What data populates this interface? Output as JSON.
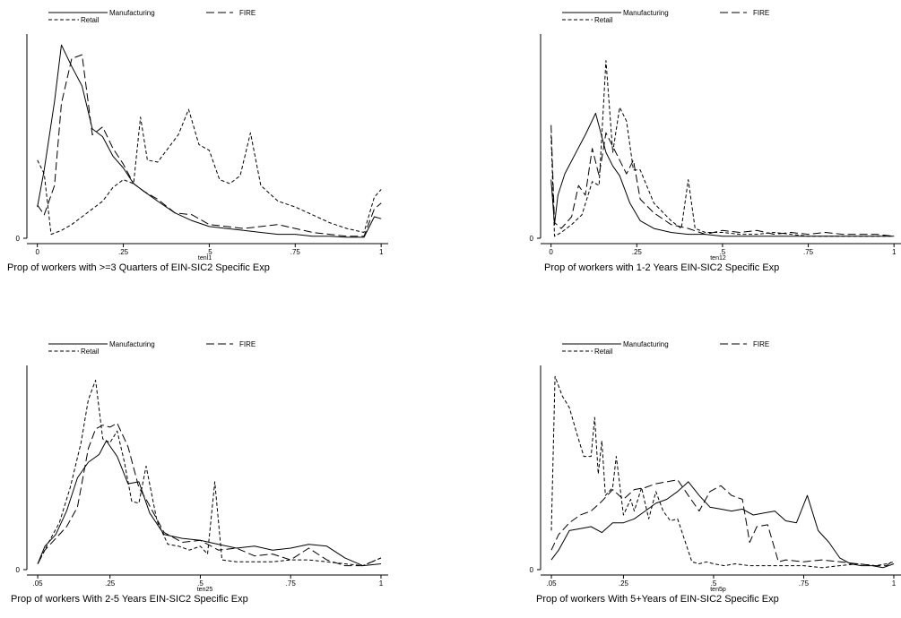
{
  "chart_data": [
    {
      "type": "line",
      "title": "Prop of workers with >=3 Quarters of EIN-SIC2 Specific Exp",
      "xlabel": "tenl1",
      "ylabel": "",
      "xlim": [
        -0.02,
        1.01
      ],
      "ylim": [
        0,
        1
      ],
      "xticks": [
        {
          "v": 0,
          "label": "0"
        },
        {
          "v": 0.25,
          "label": ".25"
        },
        {
          "v": 0.5,
          "label": ".5"
        },
        {
          "v": 0.75,
          "label": ".75"
        },
        {
          "v": 1,
          "label": "1"
        }
      ],
      "yticks": [
        {
          "v": 0,
          "label": "0"
        }
      ],
      "grid": false,
      "legend": "top",
      "series": [
        {
          "name": "Manufacturing",
          "dash": "solid",
          "x": [
            0,
            0.02,
            0.05,
            0.07,
            0.1,
            0.13,
            0.16,
            0.19,
            0.22,
            0.25,
            0.28,
            0.31,
            0.35,
            0.4,
            0.45,
            0.5,
            0.55,
            0.6,
            0.65,
            0.7,
            0.75,
            0.8,
            0.85,
            0.9,
            0.95,
            0.98,
            1
          ],
          "y": [
            0.16,
            0.35,
            0.7,
            0.99,
            0.88,
            0.78,
            0.56,
            0.52,
            0.42,
            0.36,
            0.28,
            0.24,
            0.19,
            0.13,
            0.09,
            0.06,
            0.05,
            0.04,
            0.03,
            0.02,
            0.02,
            0.01,
            0.01,
            0.005,
            0.005,
            0.11,
            0.1
          ]
        },
        {
          "name": "FIRE",
          "dash": "longdash",
          "x": [
            0,
            0.02,
            0.05,
            0.07,
            0.1,
            0.13,
            0.16,
            0.19,
            0.22,
            0.25,
            0.28,
            0.31,
            0.35,
            0.4,
            0.45,
            0.5,
            0.55,
            0.6,
            0.65,
            0.7,
            0.75,
            0.8,
            0.85,
            0.9,
            0.95,
            0.98,
            1
          ],
          "y": [
            0.17,
            0.12,
            0.27,
            0.69,
            0.92,
            0.94,
            0.53,
            0.57,
            0.46,
            0.38,
            0.28,
            0.24,
            0.2,
            0.13,
            0.12,
            0.07,
            0.06,
            0.05,
            0.06,
            0.07,
            0.05,
            0.03,
            0.02,
            0.01,
            0.01,
            0.15,
            0.18
          ]
        },
        {
          "name": "Retail",
          "dash": "shortdash",
          "x": [
            0,
            0.02,
            0.04,
            0.07,
            0.1,
            0.13,
            0.16,
            0.19,
            0.22,
            0.25,
            0.28,
            0.3,
            0.32,
            0.35,
            0.38,
            0.41,
            0.44,
            0.47,
            0.5,
            0.53,
            0.56,
            0.59,
            0.62,
            0.65,
            0.7,
            0.75,
            0.8,
            0.85,
            0.9,
            0.95,
            0.98,
            1
          ],
          "y": [
            0.4,
            0.33,
            0.02,
            0.04,
            0.07,
            0.11,
            0.15,
            0.19,
            0.26,
            0.3,
            0.28,
            0.62,
            0.4,
            0.39,
            0.46,
            0.53,
            0.66,
            0.48,
            0.45,
            0.3,
            0.28,
            0.32,
            0.54,
            0.27,
            0.19,
            0.16,
            0.12,
            0.08,
            0.05,
            0.03,
            0.21,
            0.25
          ]
        }
      ]
    },
    {
      "type": "line",
      "title": "Prop of workers with 1-2 Years EIN-SIC2 Specific Exp",
      "xlabel": "ten12",
      "ylabel": "",
      "xlim": [
        -0.02,
        1.01
      ],
      "ylim": [
        0,
        1
      ],
      "xticks": [
        {
          "v": 0,
          "label": "0"
        },
        {
          "v": 0.25,
          "label": ".25"
        },
        {
          "v": 0.5,
          "label": ".5"
        },
        {
          "v": 0.75,
          "label": ".75"
        },
        {
          "v": 1,
          "label": "1"
        }
      ],
      "yticks": [
        {
          "v": 0,
          "label": "0"
        }
      ],
      "grid": false,
      "legend": "top",
      "series": [
        {
          "name": "Manufacturing",
          "dash": "solid",
          "x": [
            0,
            0.01,
            0.02,
            0.04,
            0.07,
            0.1,
            0.13,
            0.16,
            0.18,
            0.2,
            0.23,
            0.26,
            0.3,
            0.35,
            0.4,
            0.45,
            0.5,
            0.55,
            0.6,
            0.65,
            0.7,
            0.75,
            0.8,
            0.85,
            0.9,
            0.95,
            1
          ],
          "y": [
            0.3,
            0.07,
            0.22,
            0.33,
            0.43,
            0.53,
            0.64,
            0.44,
            0.37,
            0.32,
            0.18,
            0.09,
            0.05,
            0.03,
            0.02,
            0.02,
            0.01,
            0.01,
            0.01,
            0.01,
            0.01,
            0.01,
            0.01,
            0.01,
            0.01,
            0.01,
            0.01
          ]
        },
        {
          "name": "FIRE",
          "dash": "longdash",
          "x": [
            0,
            0.01,
            0.03,
            0.06,
            0.08,
            0.1,
            0.12,
            0.14,
            0.16,
            0.18,
            0.2,
            0.22,
            0.24,
            0.26,
            0.3,
            0.35,
            0.4,
            0.45,
            0.5,
            0.55,
            0.6,
            0.65,
            0.7,
            0.75,
            0.8,
            0.85,
            0.9,
            0.95,
            1
          ],
          "y": [
            0.58,
            0.08,
            0.05,
            0.11,
            0.27,
            0.22,
            0.46,
            0.32,
            0.54,
            0.47,
            0.4,
            0.33,
            0.4,
            0.2,
            0.13,
            0.07,
            0.05,
            0.02,
            0.04,
            0.03,
            0.04,
            0.02,
            0.03,
            0.02,
            0.03,
            0.02,
            0.02,
            0.02,
            0.01
          ]
        },
        {
          "name": "Retail",
          "dash": "shortdash",
          "x": [
            0,
            0.01,
            0.03,
            0.06,
            0.09,
            0.12,
            0.14,
            0.16,
            0.18,
            0.2,
            0.22,
            0.24,
            0.26,
            0.3,
            0.35,
            0.38,
            0.4,
            0.42,
            0.45,
            0.5,
            0.55,
            0.6,
            0.65,
            0.7,
            0.75,
            0.8,
            0.85,
            0.9,
            0.95,
            1
          ],
          "y": [
            0.53,
            0.01,
            0.03,
            0.07,
            0.12,
            0.29,
            0.27,
            0.91,
            0.44,
            0.67,
            0.6,
            0.35,
            0.35,
            0.18,
            0.09,
            0.05,
            0.3,
            0.05,
            0.03,
            0.03,
            0.02,
            0.02,
            0.03,
            0.02,
            0.01,
            0.01,
            0.01,
            0.01,
            0.01,
            0.01
          ]
        }
      ]
    },
    {
      "type": "line",
      "title": "Prop of workers With 2-5 Years EIN-SIC2 Specific Exp",
      "xlabel": "ten25",
      "ylabel": "",
      "xlim": [
        0.03,
        1.01
      ],
      "ylim": [
        0,
        1
      ],
      "xticks": [
        {
          "v": 0.05,
          "label": ".05"
        },
        {
          "v": 0.25,
          "label": ".25"
        },
        {
          "v": 0.5,
          "label": ".5"
        },
        {
          "v": 0.75,
          "label": ".75"
        },
        {
          "v": 1,
          "label": "1"
        }
      ],
      "yticks": [
        {
          "v": 0,
          "label": "0"
        }
      ],
      "grid": false,
      "legend": "top",
      "series": [
        {
          "name": "Manufacturing",
          "dash": "solid",
          "x": [
            0.05,
            0.07,
            0.1,
            0.13,
            0.16,
            0.19,
            0.22,
            0.24,
            0.27,
            0.3,
            0.33,
            0.36,
            0.4,
            0.45,
            0.5,
            0.55,
            0.6,
            0.65,
            0.7,
            0.75,
            0.8,
            0.85,
            0.9,
            0.95,
            1
          ],
          "y": [
            0.03,
            0.12,
            0.18,
            0.3,
            0.47,
            0.55,
            0.59,
            0.66,
            0.58,
            0.44,
            0.45,
            0.29,
            0.18,
            0.16,
            0.15,
            0.13,
            0.11,
            0.12,
            0.1,
            0.11,
            0.13,
            0.12,
            0.06,
            0.02,
            0.03
          ]
        },
        {
          "name": "FIRE",
          "dash": "longdash",
          "x": [
            0.05,
            0.07,
            0.1,
            0.13,
            0.16,
            0.19,
            0.21,
            0.23,
            0.25,
            0.27,
            0.3,
            0.33,
            0.35,
            0.4,
            0.45,
            0.5,
            0.55,
            0.6,
            0.65,
            0.7,
            0.75,
            0.8,
            0.85,
            0.9,
            0.95,
            1
          ],
          "y": [
            0.03,
            0.1,
            0.16,
            0.22,
            0.32,
            0.62,
            0.72,
            0.74,
            0.73,
            0.75,
            0.63,
            0.42,
            0.36,
            0.19,
            0.14,
            0.15,
            0.1,
            0.11,
            0.07,
            0.08,
            0.05,
            0.11,
            0.05,
            0.02,
            0.02,
            0.06
          ]
        },
        {
          "name": "Retail",
          "dash": "shortdash",
          "x": [
            0.05,
            0.08,
            0.11,
            0.14,
            0.17,
            0.19,
            0.21,
            0.23,
            0.25,
            0.27,
            0.29,
            0.31,
            0.33,
            0.35,
            0.38,
            0.41,
            0.44,
            0.47,
            0.5,
            0.52,
            0.54,
            0.56,
            0.6,
            0.65,
            0.7,
            0.75,
            0.8,
            0.85,
            0.9,
            0.95,
            1
          ],
          "y": [
            0.03,
            0.14,
            0.24,
            0.42,
            0.65,
            0.87,
            0.97,
            0.67,
            0.65,
            0.71,
            0.55,
            0.35,
            0.34,
            0.53,
            0.25,
            0.13,
            0.12,
            0.1,
            0.12,
            0.08,
            0.45,
            0.05,
            0.04,
            0.04,
            0.04,
            0.05,
            0.05,
            0.04,
            0.03,
            0.02,
            0.06
          ]
        }
      ]
    },
    {
      "type": "line",
      "title": "Prop of workers With 5+Years of EIN-SIC2 Specific Exp",
      "xlabel": "ten5p",
      "ylabel": "",
      "xlim": [
        0.03,
        1.01
      ],
      "ylim": [
        0,
        1
      ],
      "xticks": [
        {
          "v": 0.05,
          "label": ".05"
        },
        {
          "v": 0.25,
          "label": ".25"
        },
        {
          "v": 0.5,
          "label": ".5"
        },
        {
          "v": 0.75,
          "label": ".75"
        },
        {
          "v": 1,
          "label": "1"
        }
      ],
      "yticks": [
        {
          "v": 0,
          "label": "0"
        }
      ],
      "grid": false,
      "legend": "top",
      "series": [
        {
          "name": "Manufacturing",
          "dash": "solid",
          "x": [
            0.05,
            0.07,
            0.1,
            0.13,
            0.16,
            0.19,
            0.22,
            0.25,
            0.28,
            0.31,
            0.34,
            0.37,
            0.4,
            0.43,
            0.46,
            0.49,
            0.52,
            0.55,
            0.58,
            0.61,
            0.64,
            0.67,
            0.7,
            0.73,
            0.76,
            0.79,
            0.82,
            0.85,
            0.88,
            0.91,
            0.94,
            0.97,
            1
          ],
          "y": [
            0.05,
            0.1,
            0.2,
            0.21,
            0.22,
            0.19,
            0.24,
            0.24,
            0.26,
            0.3,
            0.34,
            0.36,
            0.4,
            0.45,
            0.38,
            0.32,
            0.31,
            0.3,
            0.31,
            0.28,
            0.29,
            0.3,
            0.25,
            0.24,
            0.38,
            0.2,
            0.14,
            0.06,
            0.03,
            0.02,
            0.02,
            0.01,
            0.03
          ]
        },
        {
          "name": "FIRE",
          "dash": "longdash",
          "x": [
            0.05,
            0.07,
            0.1,
            0.13,
            0.16,
            0.19,
            0.22,
            0.25,
            0.28,
            0.31,
            0.34,
            0.37,
            0.4,
            0.43,
            0.46,
            0.49,
            0.52,
            0.55,
            0.58,
            0.6,
            0.62,
            0.65,
            0.68,
            0.7,
            0.75,
            0.8,
            0.85,
            0.9,
            0.95,
            0.98,
            1
          ],
          "y": [
            0.1,
            0.18,
            0.24,
            0.28,
            0.3,
            0.35,
            0.41,
            0.36,
            0.41,
            0.42,
            0.44,
            0.45,
            0.46,
            0.38,
            0.3,
            0.4,
            0.43,
            0.38,
            0.36,
            0.14,
            0.22,
            0.23,
            0.04,
            0.05,
            0.04,
            0.05,
            0.04,
            0.03,
            0.02,
            0.02,
            0.05
          ]
        },
        {
          "name": "Retail",
          "dash": "shortdash",
          "x": [
            0.05,
            0.06,
            0.08,
            0.1,
            0.12,
            0.14,
            0.16,
            0.17,
            0.18,
            0.19,
            0.2,
            0.22,
            0.23,
            0.25,
            0.27,
            0.28,
            0.3,
            0.32,
            0.34,
            0.36,
            0.38,
            0.4,
            0.42,
            0.44,
            0.46,
            0.48,
            0.5,
            0.53,
            0.56,
            0.6,
            0.65,
            0.7,
            0.75,
            0.8,
            0.85,
            0.9,
            0.95,
            0.98,
            1
          ],
          "y": [
            0.2,
            0.99,
            0.89,
            0.83,
            0.7,
            0.58,
            0.58,
            0.78,
            0.49,
            0.66,
            0.38,
            0.42,
            0.58,
            0.28,
            0.36,
            0.3,
            0.42,
            0.26,
            0.4,
            0.3,
            0.25,
            0.26,
            0.15,
            0.04,
            0.03,
            0.04,
            0.03,
            0.02,
            0.03,
            0.02,
            0.02,
            0.02,
            0.02,
            0.01,
            0.02,
            0.03,
            0.02,
            0.03,
            0.04
          ]
        }
      ]
    }
  ]
}
